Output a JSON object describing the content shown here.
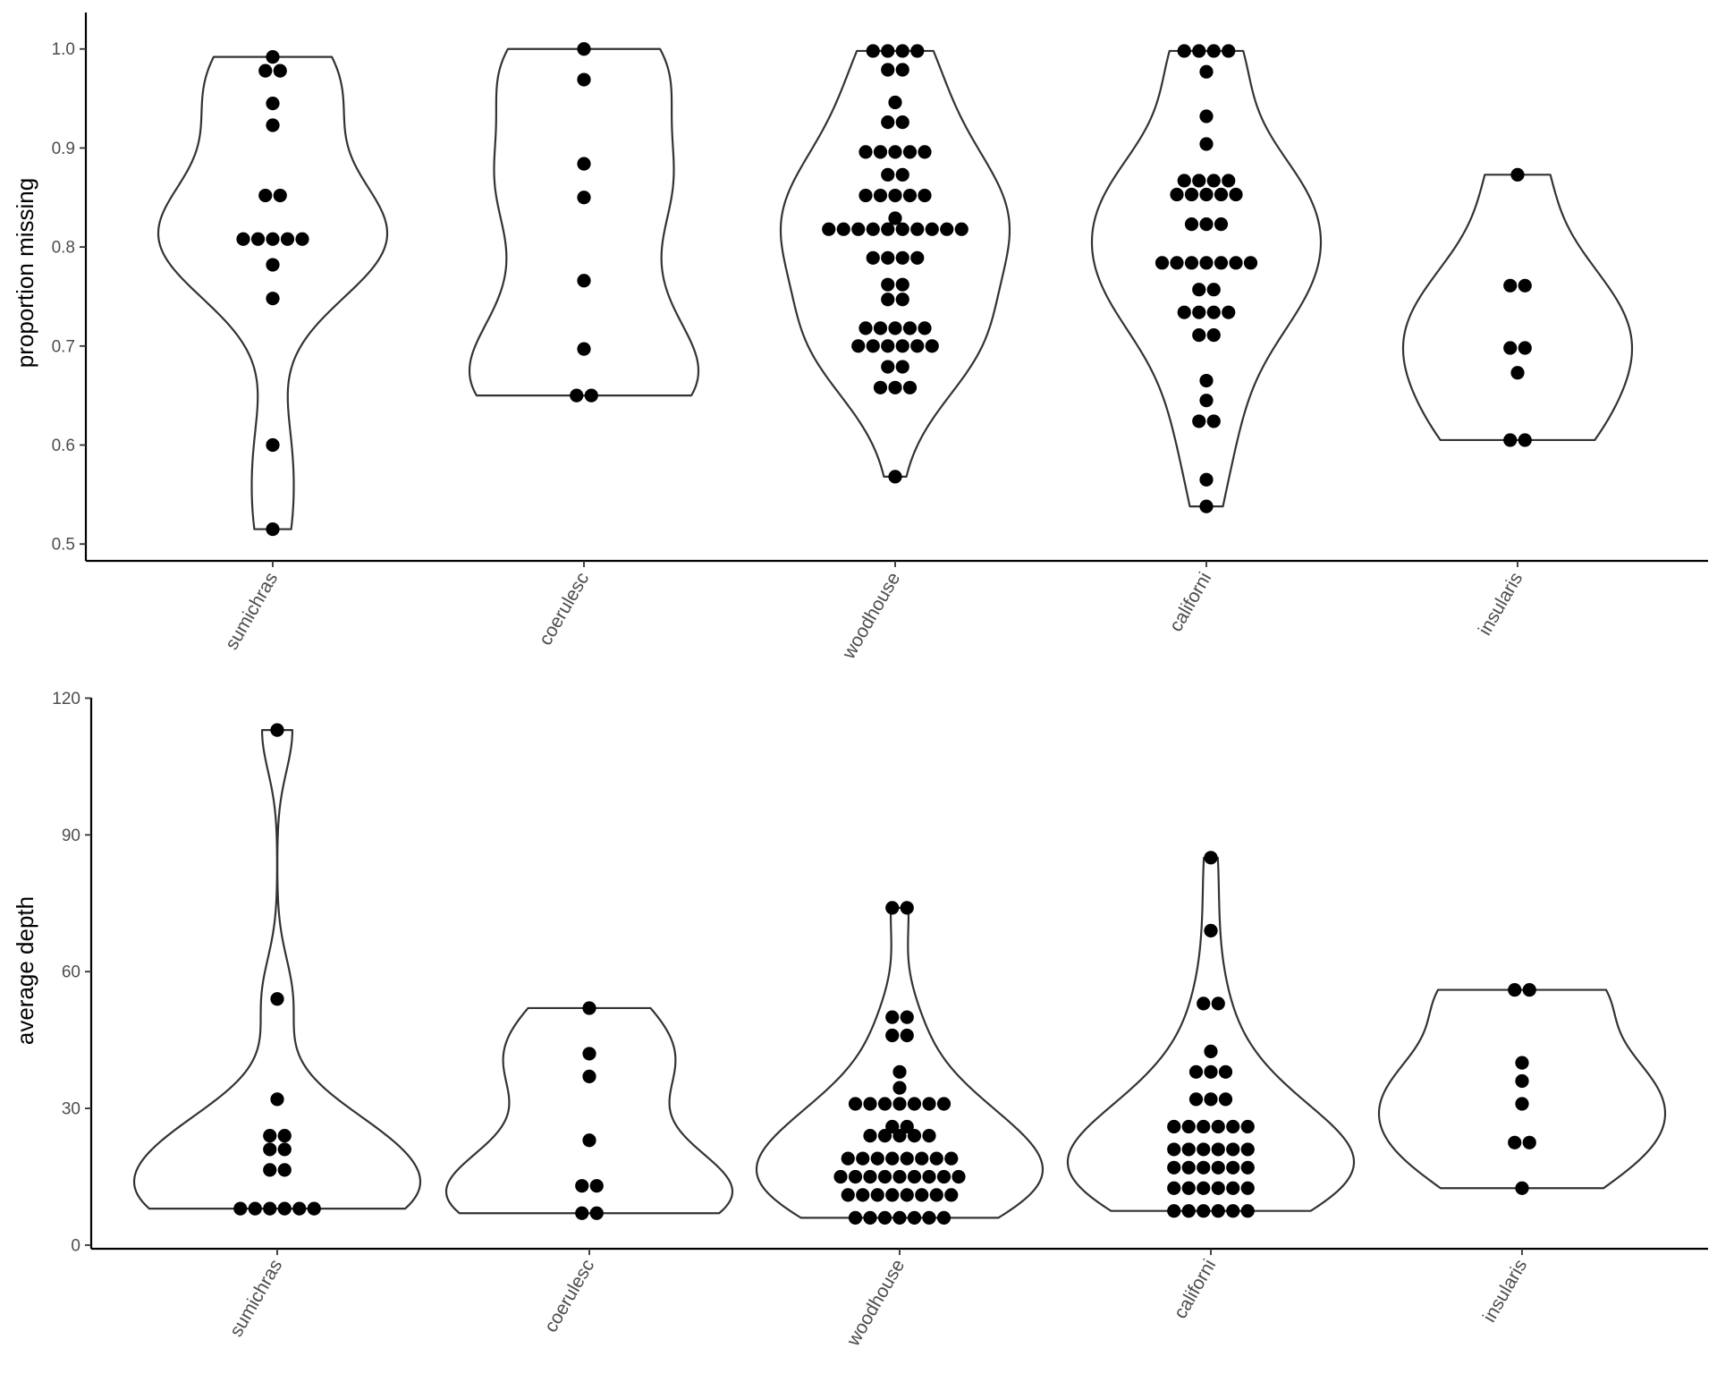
{
  "chart_data": [
    {
      "type": "violin",
      "title": "",
      "xlabel": "",
      "ylabel": "proportion missing",
      "categories": [
        "sumichras",
        "coerulesc",
        "woodhouse",
        "californi",
        "insularis"
      ],
      "yticks": [
        "0.5",
        "0.6",
        "0.7",
        "0.8",
        "0.9",
        "1.0"
      ],
      "ytick_values": [
        0.5,
        0.6,
        0.7,
        0.8,
        0.9,
        1.0
      ],
      "ylim": [
        0.483,
        1.035
      ],
      "grid": false,
      "colors": {
        "dots": "#000000",
        "violin_outline": "#333333"
      },
      "values": {
        "sumichras": [
          0.515,
          0.6,
          0.748,
          0.782,
          0.808,
          0.808,
          0.808,
          0.808,
          0.808,
          0.852,
          0.852,
          0.923,
          0.945,
          0.978,
          0.978,
          0.992
        ],
        "coerulesc": [
          0.65,
          0.65,
          0.697,
          0.766,
          0.85,
          0.884,
          0.969,
          1.0
        ],
        "woodhouse": [
          0.568,
          0.658,
          0.658,
          0.658,
          0.679,
          0.679,
          0.7,
          0.7,
          0.7,
          0.7,
          0.7,
          0.7,
          0.718,
          0.718,
          0.718,
          0.718,
          0.718,
          0.747,
          0.747,
          0.762,
          0.762,
          0.789,
          0.789,
          0.789,
          0.789,
          0.818,
          0.818,
          0.818,
          0.818,
          0.818,
          0.818,
          0.818,
          0.818,
          0.818,
          0.818,
          0.829,
          0.852,
          0.852,
          0.852,
          0.852,
          0.852,
          0.873,
          0.873,
          0.896,
          0.896,
          0.896,
          0.896,
          0.896,
          0.926,
          0.926,
          0.946,
          0.979,
          0.979,
          0.998,
          0.998,
          0.998,
          0.998
        ],
        "californi": [
          0.538,
          0.565,
          0.624,
          0.624,
          0.645,
          0.665,
          0.711,
          0.711,
          0.734,
          0.734,
          0.734,
          0.734,
          0.757,
          0.757,
          0.784,
          0.784,
          0.784,
          0.784,
          0.784,
          0.784,
          0.784,
          0.823,
          0.823,
          0.823,
          0.853,
          0.853,
          0.853,
          0.853,
          0.853,
          0.867,
          0.867,
          0.867,
          0.867,
          0.904,
          0.932,
          0.977,
          0.998,
          0.998,
          0.998,
          0.998
        ],
        "insularis": [
          0.605,
          0.605,
          0.673,
          0.698,
          0.698,
          0.761,
          0.761,
          0.873
        ]
      }
    },
    {
      "type": "violin",
      "title": "",
      "xlabel": "",
      "ylabel": "average depth",
      "categories": [
        "sumichras",
        "coerulesc",
        "woodhouse",
        "californi",
        "insularis"
      ],
      "yticks": [
        "0",
        "30",
        "60",
        "90",
        "120"
      ],
      "ytick_values": [
        0,
        30,
        60,
        90,
        120
      ],
      "ylim": [
        -0.8,
        119.7
      ],
      "grid": false,
      "colors": {
        "dots": "#000000",
        "violin_outline": "#333333"
      },
      "values": {
        "sumichras": [
          8,
          8,
          8,
          8,
          8,
          8,
          16.5,
          16.5,
          21,
          21,
          24,
          24,
          32,
          54,
          113
        ],
        "coerulesc": [
          7,
          7,
          13,
          13,
          23,
          37,
          42,
          52
        ],
        "woodhouse": [
          6,
          6,
          6,
          6,
          6,
          6,
          6,
          11,
          11,
          11,
          11,
          11,
          11,
          11,
          11,
          15,
          15,
          15,
          15,
          15,
          15,
          15,
          15,
          15,
          19,
          19,
          19,
          19,
          19,
          19,
          19,
          19,
          24,
          24,
          24,
          24,
          24,
          26,
          26,
          31,
          31,
          31,
          31,
          31,
          31,
          31,
          34.5,
          38,
          46,
          46,
          50,
          50,
          74,
          74
        ],
        "californi": [
          7.5,
          7.5,
          7.5,
          7.5,
          7.5,
          7.5,
          12.5,
          12.5,
          12.5,
          12.5,
          12.5,
          12.5,
          17,
          17,
          17,
          17,
          17,
          17,
          21,
          21,
          21,
          21,
          21,
          21,
          26,
          26,
          26,
          26,
          26,
          26,
          32,
          32,
          32,
          38,
          38,
          38,
          42.5,
          53,
          53,
          69,
          85
        ],
        "insularis": [
          12.5,
          22.5,
          22.5,
          31,
          36,
          40,
          56,
          56
        ]
      }
    }
  ]
}
